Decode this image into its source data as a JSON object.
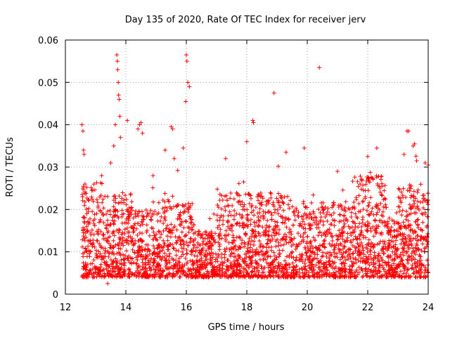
{
  "chart_data": {
    "type": "scatter",
    "title": "Day 135 of 2020, Rate Of TEC Index for receiver jerv",
    "xlabel": "GPS time / hours",
    "ylabel": "ROTI / TECUs",
    "xlim": [
      12,
      24
    ],
    "ylim": [
      0,
      0.06
    ],
    "xticks": [
      12,
      14,
      16,
      18,
      20,
      22,
      24
    ],
    "yticks": [
      0,
      0.01,
      0.02,
      0.03,
      0.04,
      0.05,
      0.06
    ],
    "xtick_labels": [
      "12",
      "14",
      "16",
      "18",
      "20",
      "22",
      "24"
    ],
    "ytick_labels": [
      "0",
      "0.01",
      "0.02",
      "0.03",
      "0.04",
      "0.05",
      "0.06"
    ],
    "grid": true,
    "marker": "+",
    "color": "#ff0000",
    "series": [
      {
        "name": "ROTI",
        "note": "Dense cloud of several thousand points, mostly 0.004–0.02 TECU/s, spanning 12.5–24 h; representative outliers listed explicitly.",
        "x": [
          12.55,
          12.58,
          12.6,
          12.62,
          12.65,
          13.2,
          13.5,
          13.6,
          13.65,
          13.7,
          13.72,
          13.73,
          13.75,
          13.76,
          13.78,
          13.8,
          13.82,
          14.05,
          14.4,
          14.45,
          14.5,
          14.55,
          14.9,
          15.3,
          15.5,
          15.55,
          15.6,
          15.9,
          15.98,
          16.0,
          16.02,
          16.05,
          16.1,
          17.3,
          18.0,
          18.2,
          18.22,
          18.9,
          19.3,
          19.9,
          20.4,
          21.0,
          22.0,
          22.3,
          23.2,
          23.3,
          23.35,
          23.5,
          23.55,
          23.9,
          24.0,
          13.4
        ],
        "y": [
          0.04,
          0.0385,
          0.034,
          0.033,
          0.026,
          0.028,
          0.031,
          0.035,
          0.04,
          0.0565,
          0.055,
          0.053,
          0.05,
          0.047,
          0.046,
          0.042,
          0.037,
          0.041,
          0.039,
          0.04,
          0.0405,
          0.038,
          0.028,
          0.034,
          0.0395,
          0.039,
          0.032,
          0.0345,
          0.0455,
          0.0565,
          0.055,
          0.05,
          0.049,
          0.032,
          0.036,
          0.041,
          0.0405,
          0.0475,
          0.0335,
          0.0345,
          0.0535,
          0.029,
          0.0325,
          0.0345,
          0.033,
          0.0385,
          0.0385,
          0.035,
          0.0355,
          0.031,
          0.0305,
          0.0025
        ]
      }
    ]
  }
}
